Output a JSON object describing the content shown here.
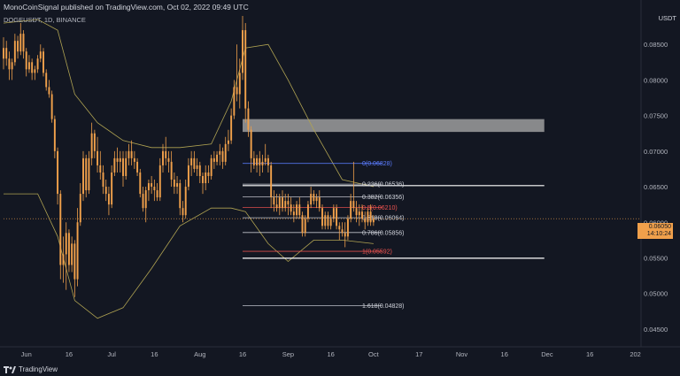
{
  "header": {
    "publisher": "MonoCoinSignal published on TradingView.com, Oct 02, 2022 09:49 UTC",
    "symbol": "DOGEUSDT, 1D, BINANCE",
    "currency": "USDT"
  },
  "footer": {
    "brand": "TradingView"
  },
  "last_price": {
    "price": "0.06050",
    "countdown": "14:10:24"
  },
  "colors": {
    "background": "#131722",
    "candle": "#f0a04b",
    "band": "#b0a352",
    "fib_line": "#d1d4dc",
    "fib_zero": "#5b7cff",
    "fib_red": "#ef5350",
    "zone": "#9e9e9e"
  },
  "chart_data": {
    "type": "candlestick",
    "y_axis": {
      "range": [
        0.0425,
        0.0895
      ],
      "ticks": [
        "0.08500",
        "0.08000",
        "0.07500",
        "0.07000",
        "0.06500",
        "0.06000",
        "0.05500",
        "0.05000",
        "0.04500"
      ]
    },
    "x_axis": {
      "range": [
        "2022-05-24",
        "2023-01-03"
      ],
      "ticks": [
        {
          "date": "2022-06-01",
          "label": "Jun"
        },
        {
          "date": "2022-06-16",
          "label": "16"
        },
        {
          "date": "2022-07-01",
          "label": "Jul"
        },
        {
          "date": "2022-07-16",
          "label": "16"
        },
        {
          "date": "2022-08-01",
          "label": "Aug"
        },
        {
          "date": "2022-08-16",
          "label": "16"
        },
        {
          "date": "2022-09-01",
          "label": "Sep"
        },
        {
          "date": "2022-09-16",
          "label": "16"
        },
        {
          "date": "2022-10-01",
          "label": "Oct"
        },
        {
          "date": "2022-10-17",
          "label": "17"
        },
        {
          "date": "2022-11-01",
          "label": "Nov"
        },
        {
          "date": "2022-11-16",
          "label": "16"
        },
        {
          "date": "2022-12-01",
          "label": "Dec"
        },
        {
          "date": "2022-12-16",
          "label": "16"
        },
        {
          "date": "2023-01-01",
          "label": "202"
        }
      ]
    },
    "candles": [
      [
        "2022-05-24",
        0.083,
        0.086,
        0.0815,
        0.0845
      ],
      [
        "2022-05-25",
        0.0845,
        0.0855,
        0.082,
        0.083
      ],
      [
        "2022-05-26",
        0.083,
        0.084,
        0.08,
        0.0815
      ],
      [
        "2022-05-27",
        0.0815,
        0.083,
        0.08,
        0.0825
      ],
      [
        "2022-05-28",
        0.0825,
        0.0865,
        0.082,
        0.0855
      ],
      [
        "2022-05-29",
        0.0855,
        0.0862,
        0.083,
        0.084
      ],
      [
        "2022-05-30",
        0.084,
        0.088,
        0.0835,
        0.0865
      ],
      [
        "2022-05-31",
        0.0865,
        0.087,
        0.083,
        0.084
      ],
      [
        "2022-06-01",
        0.084,
        0.0845,
        0.0805,
        0.0815
      ],
      [
        "2022-06-02",
        0.0815,
        0.0835,
        0.081,
        0.0825
      ],
      [
        "2022-06-03",
        0.0825,
        0.083,
        0.08,
        0.081
      ],
      [
        "2022-06-04",
        0.081,
        0.082,
        0.08,
        0.0815
      ],
      [
        "2022-06-05",
        0.0815,
        0.0835,
        0.081,
        0.083
      ],
      [
        "2022-06-06",
        0.083,
        0.085,
        0.0825,
        0.084
      ],
      [
        "2022-06-07",
        0.084,
        0.0845,
        0.0805,
        0.081
      ],
      [
        "2022-06-08",
        0.081,
        0.0815,
        0.0785,
        0.079
      ],
      [
        "2022-06-09",
        0.079,
        0.08,
        0.0775,
        0.078
      ],
      [
        "2022-06-10",
        0.078,
        0.0785,
        0.074,
        0.0745
      ],
      [
        "2022-06-11",
        0.0745,
        0.075,
        0.069,
        0.07
      ],
      [
        "2022-06-12",
        0.07,
        0.0705,
        0.0625,
        0.064
      ],
      [
        "2022-06-13",
        0.064,
        0.0645,
        0.052,
        0.054
      ],
      [
        "2022-06-14",
        0.054,
        0.058,
        0.0515,
        0.0555
      ],
      [
        "2022-06-15",
        0.0555,
        0.06,
        0.0505,
        0.0585
      ],
      [
        "2022-06-16",
        0.0585,
        0.059,
        0.053,
        0.054
      ],
      [
        "2022-06-17",
        0.054,
        0.058,
        0.053,
        0.057
      ],
      [
        "2022-06-18",
        0.057,
        0.0575,
        0.0495,
        0.052
      ],
      [
        "2022-06-19",
        0.052,
        0.062,
        0.051,
        0.06
      ],
      [
        "2022-06-20",
        0.06,
        0.0655,
        0.0595,
        0.064
      ],
      [
        "2022-06-21",
        0.064,
        0.07,
        0.063,
        0.069
      ],
      [
        "2022-06-22",
        0.069,
        0.0695,
        0.0635,
        0.0645
      ],
      [
        "2022-06-23",
        0.0645,
        0.07,
        0.064,
        0.069
      ],
      [
        "2022-06-24",
        0.069,
        0.074,
        0.068,
        0.0725
      ],
      [
        "2022-06-25",
        0.0725,
        0.073,
        0.069,
        0.07
      ],
      [
        "2022-06-26",
        0.07,
        0.072,
        0.067,
        0.068
      ],
      [
        "2022-06-27",
        0.068,
        0.07,
        0.066,
        0.067
      ],
      [
        "2022-06-28",
        0.067,
        0.068,
        0.064,
        0.065
      ],
      [
        "2022-06-29",
        0.065,
        0.066,
        0.063,
        0.064
      ],
      [
        "2022-06-30",
        0.064,
        0.065,
        0.061,
        0.0625
      ],
      [
        "2022-07-01",
        0.0625,
        0.068,
        0.062,
        0.067
      ],
      [
        "2022-07-02",
        0.067,
        0.07,
        0.0665,
        0.069
      ],
      [
        "2022-07-03",
        0.069,
        0.0705,
        0.067,
        0.0685
      ],
      [
        "2022-07-04",
        0.0685,
        0.07,
        0.067,
        0.069
      ],
      [
        "2022-07-05",
        0.069,
        0.07,
        0.065,
        0.0665
      ],
      [
        "2022-07-06",
        0.0665,
        0.07,
        0.066,
        0.069
      ],
      [
        "2022-07-07",
        0.069,
        0.071,
        0.068,
        0.07
      ],
      [
        "2022-07-08",
        0.07,
        0.0715,
        0.068,
        0.069
      ],
      [
        "2022-07-09",
        0.069,
        0.07,
        0.0675,
        0.0685
      ],
      [
        "2022-07-10",
        0.0685,
        0.069,
        0.0665,
        0.067
      ],
      [
        "2022-07-11",
        0.067,
        0.0675,
        0.0635,
        0.064
      ],
      [
        "2022-07-12",
        0.064,
        0.065,
        0.0615,
        0.062
      ],
      [
        "2022-07-13",
        0.062,
        0.065,
        0.06,
        0.0645
      ],
      [
        "2022-07-14",
        0.0645,
        0.066,
        0.063,
        0.0655
      ],
      [
        "2022-07-15",
        0.0655,
        0.0665,
        0.064,
        0.065
      ],
      [
        "2022-07-16",
        0.065,
        0.066,
        0.063,
        0.0645
      ],
      [
        "2022-07-17",
        0.0645,
        0.0655,
        0.063,
        0.0635
      ],
      [
        "2022-07-18",
        0.0635,
        0.069,
        0.063,
        0.068
      ],
      [
        "2022-07-19",
        0.068,
        0.071,
        0.067,
        0.07
      ],
      [
        "2022-07-20",
        0.07,
        0.072,
        0.068,
        0.069
      ],
      [
        "2022-07-21",
        0.069,
        0.07,
        0.067,
        0.0685
      ],
      [
        "2022-07-22",
        0.0685,
        0.07,
        0.065,
        0.066
      ],
      [
        "2022-07-23",
        0.066,
        0.067,
        0.064,
        0.065
      ],
      [
        "2022-07-24",
        0.065,
        0.0665,
        0.064,
        0.0655
      ],
      [
        "2022-07-25",
        0.0655,
        0.066,
        0.061,
        0.062
      ],
      [
        "2022-07-26",
        0.062,
        0.063,
        0.06,
        0.061
      ],
      [
        "2022-07-27",
        0.061,
        0.066,
        0.0605,
        0.065
      ],
      [
        "2022-07-28",
        0.065,
        0.069,
        0.0645,
        0.068
      ],
      [
        "2022-07-29",
        0.068,
        0.07,
        0.0665,
        0.069
      ],
      [
        "2022-07-30",
        0.069,
        0.07,
        0.067,
        0.0675
      ],
      [
        "2022-07-31",
        0.0675,
        0.069,
        0.0665,
        0.068
      ],
      [
        "2022-08-01",
        0.068,
        0.0685,
        0.0655,
        0.0665
      ],
      [
        "2022-08-02",
        0.0665,
        0.067,
        0.064,
        0.0655
      ],
      [
        "2022-08-03",
        0.0655,
        0.068,
        0.0645,
        0.067
      ],
      [
        "2022-08-04",
        0.067,
        0.068,
        0.0655,
        0.0665
      ],
      [
        "2022-08-05",
        0.0665,
        0.0695,
        0.066,
        0.069
      ],
      [
        "2022-08-06",
        0.069,
        0.07,
        0.0675,
        0.0685
      ],
      [
        "2022-08-07",
        0.0685,
        0.07,
        0.068,
        0.0695
      ],
      [
        "2022-08-08",
        0.0695,
        0.071,
        0.068,
        0.07
      ],
      [
        "2022-08-09",
        0.07,
        0.0705,
        0.0675,
        0.0685
      ],
      [
        "2022-08-10",
        0.0685,
        0.072,
        0.068,
        0.071
      ],
      [
        "2022-08-11",
        0.071,
        0.073,
        0.07,
        0.0715
      ],
      [
        "2022-08-12",
        0.0715,
        0.076,
        0.071,
        0.075
      ],
      [
        "2022-08-13",
        0.075,
        0.08,
        0.0745,
        0.079
      ],
      [
        "2022-08-14",
        0.079,
        0.085,
        0.077,
        0.078
      ],
      [
        "2022-08-15",
        0.078,
        0.083,
        0.076,
        0.081
      ],
      [
        "2022-08-16",
        0.081,
        0.089,
        0.08,
        0.087
      ],
      [
        "2022-08-17",
        0.087,
        0.088,
        0.074,
        0.076
      ],
      [
        "2022-08-18",
        0.076,
        0.077,
        0.072,
        0.073
      ],
      [
        "2022-08-19",
        0.073,
        0.0735,
        0.067,
        0.069
      ],
      [
        "2022-08-20",
        0.069,
        0.07,
        0.0675,
        0.068
      ],
      [
        "2022-08-21",
        0.068,
        0.0695,
        0.067,
        0.069
      ],
      [
        "2022-08-22",
        0.069,
        0.07,
        0.0665,
        0.068
      ],
      [
        "2022-08-23",
        0.068,
        0.0695,
        0.067,
        0.0685
      ],
      [
        "2022-08-24",
        0.0685,
        0.071,
        0.068,
        0.069
      ],
      [
        "2022-08-25",
        0.069,
        0.0695,
        0.067,
        0.068
      ],
      [
        "2022-08-26",
        0.068,
        0.0685,
        0.062,
        0.0635
      ],
      [
        "2022-08-27",
        0.0635,
        0.0645,
        0.0615,
        0.0625
      ],
      [
        "2022-08-28",
        0.0625,
        0.064,
        0.0615,
        0.062
      ],
      [
        "2022-08-29",
        0.062,
        0.064,
        0.061,
        0.0635
      ],
      [
        "2022-08-30",
        0.0635,
        0.0645,
        0.0615,
        0.062
      ],
      [
        "2022-08-31",
        0.062,
        0.064,
        0.0615,
        0.063
      ],
      [
        "2022-09-01",
        0.063,
        0.064,
        0.061,
        0.0625
      ],
      [
        "2022-09-02",
        0.0625,
        0.0635,
        0.061,
        0.0615
      ],
      [
        "2022-09-03",
        0.0615,
        0.0625,
        0.06,
        0.061
      ],
      [
        "2022-09-04",
        0.061,
        0.063,
        0.0605,
        0.0625
      ],
      [
        "2022-09-05",
        0.0625,
        0.0635,
        0.0605,
        0.061
      ],
      [
        "2022-09-06",
        0.061,
        0.0615,
        0.058,
        0.0585
      ],
      [
        "2022-09-07",
        0.0585,
        0.061,
        0.058,
        0.0605
      ],
      [
        "2022-09-08",
        0.0605,
        0.063,
        0.06,
        0.0625
      ],
      [
        "2022-09-09",
        0.0625,
        0.065,
        0.062,
        0.064
      ],
      [
        "2022-09-10",
        0.064,
        0.0645,
        0.0625,
        0.063
      ],
      [
        "2022-09-11",
        0.063,
        0.064,
        0.062,
        0.0635
      ],
      [
        "2022-09-12",
        0.0635,
        0.0645,
        0.0615,
        0.062
      ],
      [
        "2022-09-13",
        0.062,
        0.0625,
        0.059,
        0.0595
      ],
      [
        "2022-09-14",
        0.0595,
        0.0615,
        0.059,
        0.061
      ],
      [
        "2022-09-15",
        0.061,
        0.0615,
        0.059,
        0.0595
      ],
      [
        "2022-09-16",
        0.0595,
        0.061,
        0.059,
        0.0605
      ],
      [
        "2022-09-17",
        0.0605,
        0.0625,
        0.06,
        0.062
      ],
      [
        "2022-09-18",
        0.062,
        0.0625,
        0.059,
        0.0595
      ],
      [
        "2022-09-19",
        0.0595,
        0.06,
        0.0575,
        0.059
      ],
      [
        "2022-09-20",
        0.059,
        0.06,
        0.058,
        0.0585
      ],
      [
        "2022-09-21",
        0.0585,
        0.06,
        0.0565,
        0.058
      ],
      [
        "2022-09-22",
        0.058,
        0.061,
        0.0575,
        0.0605
      ],
      [
        "2022-09-23",
        0.0605,
        0.064,
        0.06,
        0.063
      ],
      [
        "2022-09-24",
        0.063,
        0.0685,
        0.0615,
        0.062
      ],
      [
        "2022-09-25",
        0.062,
        0.063,
        0.06,
        0.061
      ],
      [
        "2022-09-26",
        0.061,
        0.0625,
        0.0595,
        0.0615
      ],
      [
        "2022-09-27",
        0.0615,
        0.0625,
        0.06,
        0.0605
      ],
      [
        "2022-09-28",
        0.0605,
        0.0615,
        0.059,
        0.06
      ],
      [
        "2022-09-29",
        0.06,
        0.062,
        0.0595,
        0.0615
      ],
      [
        "2022-09-30",
        0.0615,
        0.0625,
        0.0595,
        0.06
      ],
      [
        "2022-10-01",
        0.06,
        0.061,
        0.0595,
        0.0605
      ]
    ],
    "bands": {
      "upper": [
        [
          "2022-05-24",
          0.088
        ],
        [
          "2022-06-05",
          0.0885
        ],
        [
          "2022-06-12",
          0.087
        ],
        [
          "2022-06-18",
          0.078
        ],
        [
          "2022-06-26",
          0.074
        ],
        [
          "2022-07-05",
          0.0715
        ],
        [
          "2022-07-15",
          0.0705
        ],
        [
          "2022-07-25",
          0.0705
        ],
        [
          "2022-08-05",
          0.071
        ],
        [
          "2022-08-12",
          0.077
        ],
        [
          "2022-08-17",
          0.0845
        ],
        [
          "2022-08-25",
          0.085
        ],
        [
          "2022-09-01",
          0.08
        ],
        [
          "2022-09-10",
          0.073
        ],
        [
          "2022-09-20",
          0.066
        ],
        [
          "2022-10-01",
          0.065
        ]
      ],
      "lower": [
        [
          "2022-05-24",
          0.064
        ],
        [
          "2022-06-05",
          0.064
        ],
        [
          "2022-06-12",
          0.058
        ],
        [
          "2022-06-18",
          0.049
        ],
        [
          "2022-06-26",
          0.0465
        ],
        [
          "2022-07-05",
          0.048
        ],
        [
          "2022-07-15",
          0.0535
        ],
        [
          "2022-07-25",
          0.0595
        ],
        [
          "2022-08-05",
          0.062
        ],
        [
          "2022-08-12",
          0.062
        ],
        [
          "2022-08-17",
          0.0615
        ],
        [
          "2022-08-25",
          0.057
        ],
        [
          "2022-09-01",
          0.0545
        ],
        [
          "2022-09-10",
          0.0575
        ],
        [
          "2022-09-20",
          0.0575
        ],
        [
          "2022-10-01",
          0.057
        ]
      ]
    },
    "fib_levels": [
      {
        "label": "0(0.06828)",
        "value": 0.06828,
        "color": "#5b7cff"
      },
      {
        "label": "0.236(0.06536)",
        "value": 0.06536,
        "color": "#d1d4dc"
      },
      {
        "label": "0.382(0.06356)",
        "value": 0.06356,
        "color": "#d1d4dc"
      },
      {
        "label": "0.5(0.06210)",
        "value": 0.0621,
        "color": "#ef5350"
      },
      {
        "label": "0.618(0.06064)",
        "value": 0.06064,
        "color": "#d1d4dc"
      },
      {
        "label": "0.786(0.05856)",
        "value": 0.05856,
        "color": "#d1d4dc"
      },
      {
        "label": "1(0.05592)",
        "value": 0.05592,
        "color": "#ef5350"
      },
      {
        "label": "1.618(0.04828)",
        "value": 0.04828,
        "color": "#d1d4dc"
      }
    ],
    "fib_range": [
      "2022-08-16",
      "2022-10-01"
    ],
    "fib_label_date": "2022-09-27",
    "horizontal_lines": [
      0.06515,
      0.05495
    ],
    "horizontal_lines_range": [
      "2022-08-16",
      "2022-11-30"
    ],
    "zone": {
      "from_date": "2022-08-16",
      "to_date": "2022-11-30",
      "low": 0.0727,
      "high": 0.0745
    },
    "last_price_value": 0.0605
  }
}
